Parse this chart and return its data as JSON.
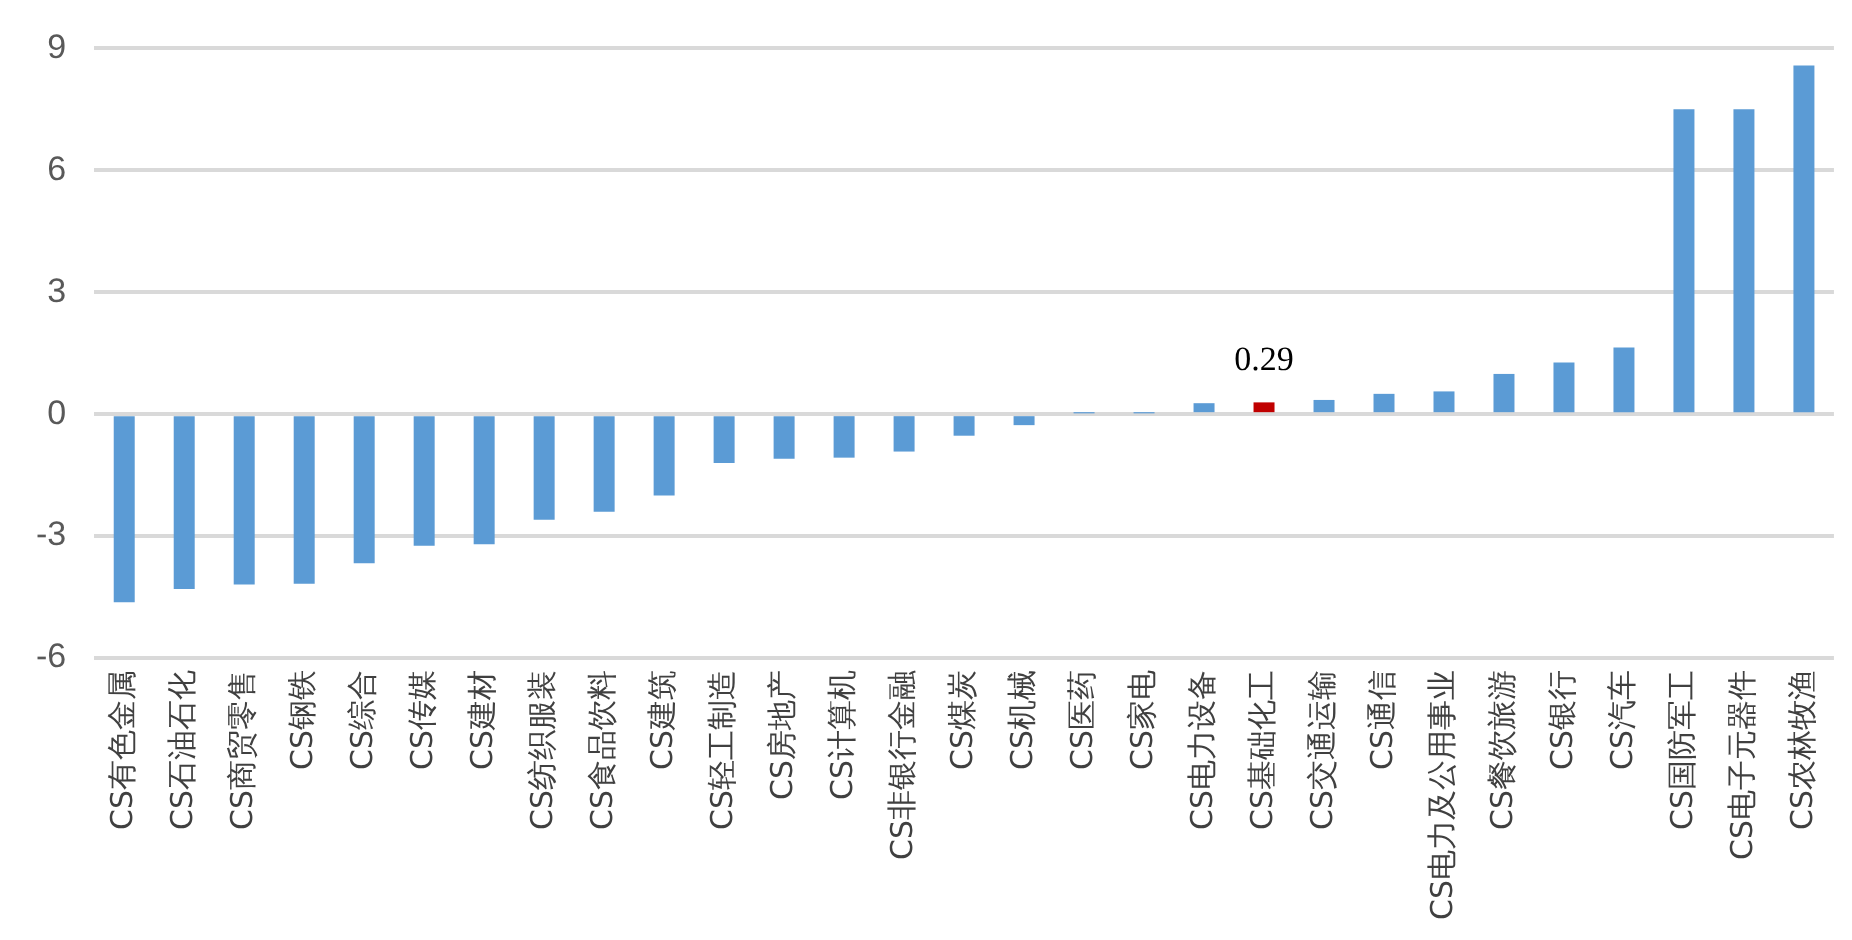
{
  "chart_data": {
    "type": "bar",
    "categories": [
      "CS有色金属",
      "CS石油石化",
      "CS商贸零售",
      "CS钢铁",
      "CS综合",
      "CS传媒",
      "CS建材",
      "CS纺织服装",
      "CS食品饮料",
      "CS建筑",
      "CS轻工制造",
      "CS房地产",
      "CS计算机",
      "CS非银行金融",
      "CS煤炭",
      "CS机械",
      "CS医药",
      "CS家电",
      "CS电力设备",
      "CS基础化工",
      "CS交通运输",
      "CS通信",
      "CS电力及公用事业",
      "CS餐饮旅游",
      "CS银行",
      "CS汽车",
      "CS国防军工",
      "CS电子元器件",
      "CS农林牧渔"
    ],
    "values": [
      -4.63,
      -4.3,
      -4.19,
      -4.17,
      -3.67,
      -3.24,
      -3.2,
      -2.6,
      -2.4,
      -2.0,
      -1.2,
      -1.1,
      -1.07,
      -0.92,
      -0.53,
      -0.27,
      0.02,
      0.02,
      0.27,
      0.29,
      0.35,
      0.5,
      0.56,
      0.99,
      1.27,
      1.64,
      7.5,
      7.5,
      8.58
    ],
    "colors": [
      "#5b9bd5",
      "#5b9bd5",
      "#5b9bd5",
      "#5b9bd5",
      "#5b9bd5",
      "#5b9bd5",
      "#5b9bd5",
      "#5b9bd5",
      "#5b9bd5",
      "#5b9bd5",
      "#5b9bd5",
      "#5b9bd5",
      "#5b9bd5",
      "#5b9bd5",
      "#5b9bd5",
      "#5b9bd5",
      "#5b9bd5",
      "#5b9bd5",
      "#5b9bd5",
      "#c00000",
      "#5b9bd5",
      "#5b9bd5",
      "#5b9bd5",
      "#5b9bd5",
      "#5b9bd5",
      "#5b9bd5",
      "#5b9bd5",
      "#5b9bd5",
      "#5b9bd5"
    ],
    "value_labels": [
      null,
      null,
      null,
      null,
      null,
      null,
      null,
      null,
      null,
      null,
      null,
      null,
      null,
      null,
      null,
      null,
      null,
      null,
      null,
      "0.29",
      null,
      null,
      null,
      null,
      null,
      null,
      null,
      null,
      null
    ],
    "ylim": [
      -6,
      9
    ],
    "yticks": [
      -6,
      -3,
      0,
      3,
      6,
      9
    ],
    "grid": "y",
    "legend": false
  }
}
